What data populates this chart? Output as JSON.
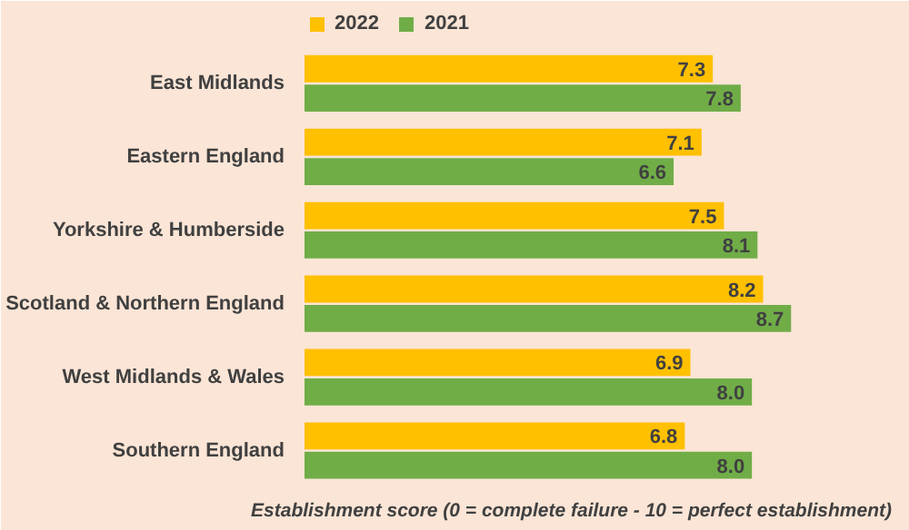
{
  "chart_data": {
    "type": "bar",
    "orientation": "horizontal",
    "categories": [
      "East Midlands",
      "Eastern England",
      "Yorkshire & Humberside",
      "Scotland & Northern England",
      "West Midlands & Wales",
      "Southern England"
    ],
    "series": [
      {
        "name": "2022",
        "color": "#ffc000",
        "values": [
          7.3,
          7.1,
          7.5,
          8.2,
          6.9,
          6.8
        ],
        "value_labels": [
          "7.3",
          "7.1",
          "7.5",
          "8.2",
          "6.9",
          "6.8"
        ]
      },
      {
        "name": "2021",
        "color": "#70ad47",
        "values": [
          7.8,
          6.6,
          8.1,
          8.7,
          8.0,
          8.0
        ],
        "value_labels": [
          "7.8",
          "6.6",
          "8.1",
          "8.7",
          "8.0",
          "8.0"
        ]
      }
    ],
    "xlim": [
      0,
      10.5
    ],
    "xlabel": "Establishment score (0 = complete failure - 10 = perfect establishment)",
    "legend": "top left",
    "grid": false,
    "tick_labels": "y"
  }
}
